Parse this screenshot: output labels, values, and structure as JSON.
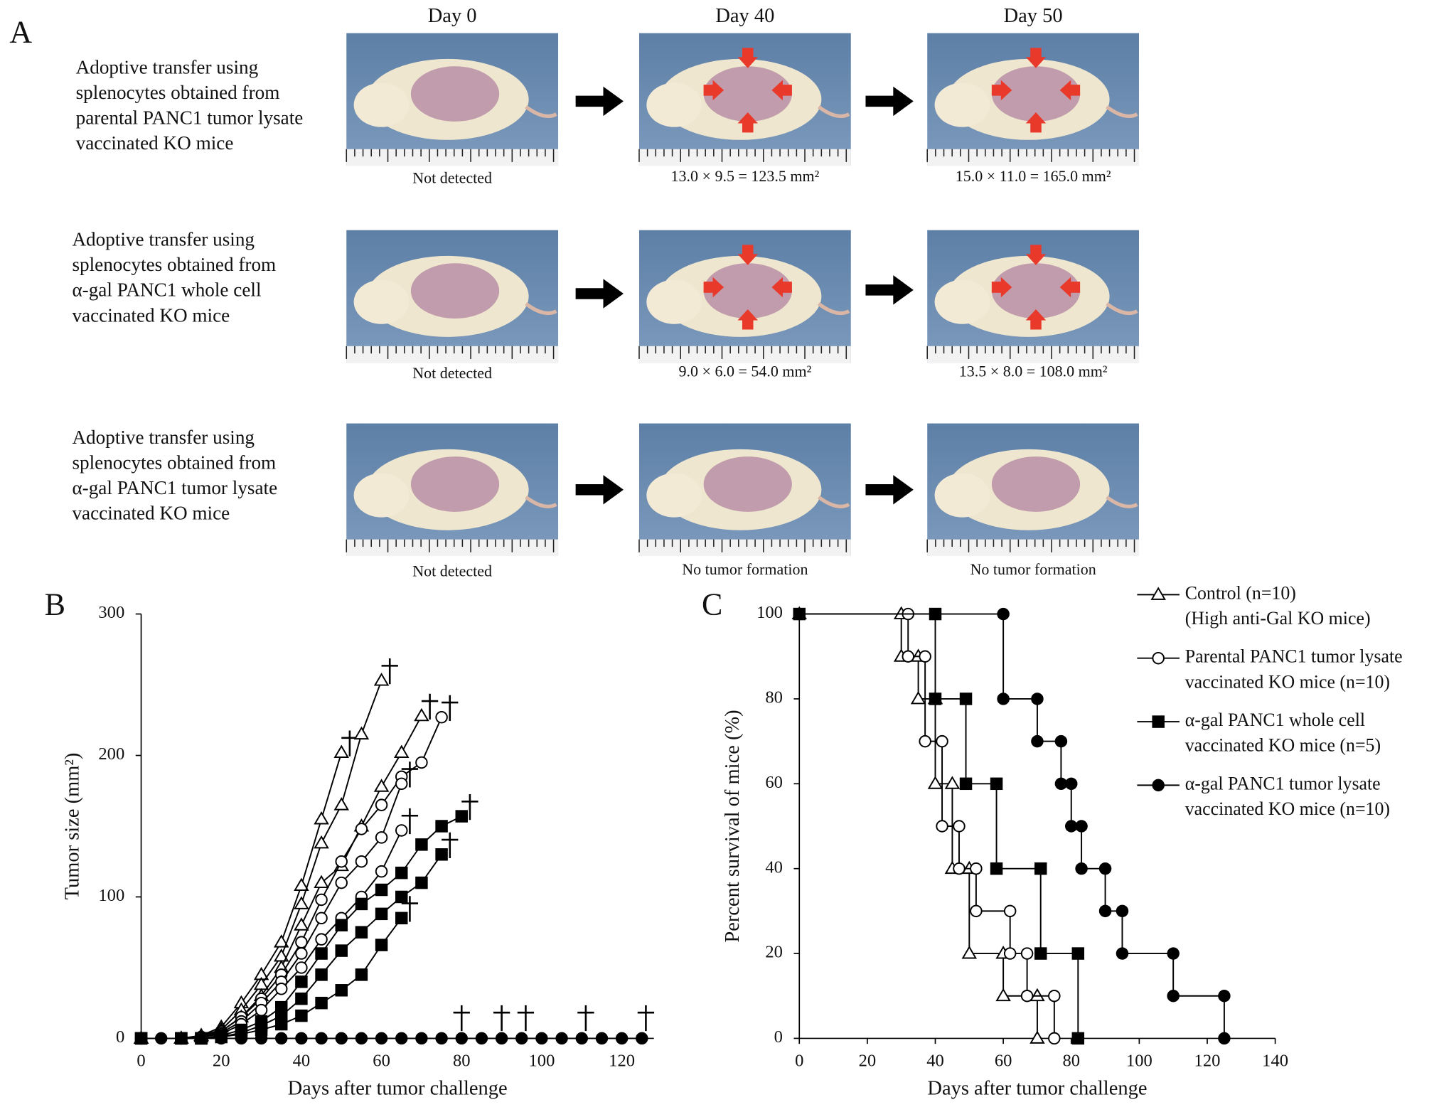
{
  "panel_a": {
    "label": "A",
    "columns": [
      "Day 0",
      "Day 40",
      "Day 50"
    ],
    "rows": [
      {
        "description_lines": [
          "Adoptive transfer using",
          "splenocytes obtained from",
          "parental PANC1 tumor lysate",
          "vaccinated KO mice"
        ],
        "captions": [
          "Not detected",
          "13.0 × 9.5 = 123.5 mm²",
          "15.0 × 11.0 = 165.0 mm²"
        ]
      },
      {
        "description_lines": [
          "Adoptive transfer using",
          "splenocytes obtained from",
          "α-gal PANC1 whole cell",
          "vaccinated KO mice"
        ],
        "captions": [
          "Not detected",
          "9.0 × 6.0 = 54.0 mm²",
          "13.5 × 8.0 = 108.0 mm²"
        ]
      },
      {
        "description_lines": [
          "Adoptive transfer using",
          "splenocytes obtained from",
          "α-gal PANC1 tumor lysate",
          "vaccinated KO mice"
        ],
        "captions": [
          "Not detected",
          "No tumor formation",
          "No tumor formation"
        ]
      }
    ]
  },
  "chart_data": [
    {
      "type": "line",
      "panel_label": "B",
      "x_label": "Days after tumor challenge",
      "y_label": "Tumor size (mm²)",
      "xlim": [
        0,
        128
      ],
      "xticks": [
        0,
        20,
        40,
        60,
        80,
        100,
        120
      ],
      "ylim": [
        0,
        300
      ],
      "yticks": [
        0,
        100,
        200,
        300
      ],
      "series": [
        {
          "marker": "triangle-open",
          "color": "#000",
          "x": [
            0,
            10,
            15,
            20,
            25,
            30,
            35,
            40,
            45,
            50
          ],
          "values": [
            0,
            0,
            2,
            8,
            25,
            45,
            68,
            108,
            155,
            202
          ]
        },
        {
          "marker": "triangle-open",
          "color": "#000",
          "x": [
            0,
            10,
            15,
            20,
            25,
            30,
            35,
            40,
            45,
            50,
            55,
            60
          ],
          "values": [
            0,
            0,
            2,
            6,
            20,
            38,
            58,
            95,
            138,
            165,
            215,
            253
          ]
        },
        {
          "marker": "triangle-open",
          "color": "#000",
          "x": [
            0,
            10,
            15,
            20,
            25,
            30,
            35,
            40,
            45,
            50,
            55,
            60,
            65,
            70
          ],
          "values": [
            0,
            0,
            1,
            5,
            15,
            30,
            50,
            80,
            110,
            122,
            150,
            178,
            202,
            228
          ]
        },
        {
          "marker": "circle-open",
          "color": "#000",
          "x": [
            0,
            10,
            15,
            20,
            25,
            30,
            35,
            40,
            45,
            50,
            55,
            60,
            65,
            70,
            75
          ],
          "values": [
            0,
            0,
            1,
            5,
            15,
            28,
            45,
            68,
            98,
            125,
            148,
            165,
            185,
            195,
            227
          ]
        },
        {
          "marker": "circle-open",
          "color": "#000",
          "x": [
            0,
            10,
            15,
            20,
            25,
            30,
            35,
            40,
            45,
            50,
            55,
            60,
            65
          ],
          "values": [
            0,
            0,
            1,
            4,
            12,
            25,
            40,
            60,
            85,
            110,
            125,
            142,
            180
          ]
        },
        {
          "marker": "circle-open",
          "color": "#000",
          "x": [
            0,
            10,
            15,
            20,
            25,
            30,
            35,
            40,
            45,
            50,
            55,
            60,
            65
          ],
          "values": [
            0,
            0,
            1,
            3,
            10,
            20,
            35,
            50,
            70,
            85,
            100,
            118,
            147
          ]
        },
        {
          "marker": "square-filled",
          "color": "#000",
          "x": [
            0,
            10,
            15,
            20,
            25,
            30,
            35,
            40,
            45,
            50,
            55,
            60,
            65,
            70,
            75,
            80
          ],
          "values": [
            0,
            0,
            0,
            2,
            6,
            12,
            22,
            40,
            60,
            80,
            95,
            105,
            117,
            137,
            150,
            157
          ]
        },
        {
          "marker": "square-filled",
          "color": "#000",
          "x": [
            0,
            10,
            15,
            20,
            25,
            30,
            35,
            40,
            45,
            50,
            55,
            60,
            65,
            70,
            75
          ],
          "values": [
            0,
            0,
            0,
            1,
            4,
            9,
            16,
            28,
            45,
            62,
            75,
            88,
            100,
            110,
            130
          ]
        },
        {
          "marker": "square-filled",
          "color": "#000",
          "x": [
            0,
            10,
            15,
            20,
            25,
            30,
            35,
            40,
            45,
            50,
            55,
            60,
            65
          ],
          "values": [
            0,
            0,
            0,
            1,
            3,
            6,
            10,
            16,
            25,
            34,
            45,
            66,
            85
          ]
        },
        {
          "marker": "circle-filled",
          "color": "#000",
          "x": [
            0,
            5,
            10,
            15,
            20,
            25,
            30,
            35,
            40,
            45,
            50,
            55,
            60,
            65,
            70,
            75,
            80,
            85,
            90,
            95,
            100,
            105,
            110,
            115,
            120,
            125
          ],
          "values": [
            0,
            0,
            0,
            0,
            0,
            0,
            0,
            0,
            0,
            0,
            0,
            0,
            0,
            0,
            0,
            0,
            0,
            0,
            0,
            0,
            0,
            0,
            0,
            0,
            0,
            0
          ],
          "death_days": [
            80,
            90,
            96,
            111,
            126
          ]
        }
      ]
    },
    {
      "type": "step",
      "panel_label": "C",
      "x_label": "Days after tumor challenge",
      "y_label": "Percent survival of mice (%)",
      "xlim": [
        0,
        140
      ],
      "xticks": [
        0,
        20,
        40,
        60,
        80,
        100,
        120,
        140
      ],
      "ylim": [
        0,
        100
      ],
      "yticks": [
        0,
        20,
        40,
        60,
        80,
        100
      ],
      "series": [
        {
          "name_lines": [
            "Control (n=10)",
            "(High anti-Gal KO mice)"
          ],
          "marker": "triangle-open",
          "color": "#000",
          "x": [
            0,
            30,
            35,
            40,
            45,
            50,
            60,
            70
          ],
          "values": [
            100,
            90,
            80,
            60,
            40,
            20,
            10,
            0
          ]
        },
        {
          "name_lines": [
            "Parental PANC1 tumor lysate",
            "vaccinated KO mice (n=10)"
          ],
          "marker": "circle-open",
          "color": "#000",
          "x": [
            0,
            32,
            37,
            42,
            47,
            52,
            62,
            67,
            75
          ],
          "values": [
            100,
            90,
            70,
            50,
            40,
            30,
            20,
            10,
            0
          ]
        },
        {
          "name_lines": [
            "α-gal PANC1 whole cell",
            "vaccinated KO mice (n=5)"
          ],
          "marker": "square-filled",
          "color": "#000",
          "x": [
            0,
            40,
            49,
            58,
            71,
            82
          ],
          "values": [
            100,
            80,
            60,
            40,
            20,
            0
          ]
        },
        {
          "name_lines": [
            "α-gal PANC1 tumor lysate",
            "vaccinated KO mice (n=10)"
          ],
          "marker": "circle-filled",
          "color": "#000",
          "x": [
            0,
            60,
            70,
            77,
            80,
            83,
            90,
            95,
            110,
            125
          ],
          "values": [
            100,
            80,
            70,
            60,
            50,
            40,
            30,
            20,
            10,
            0
          ]
        }
      ]
    }
  ]
}
